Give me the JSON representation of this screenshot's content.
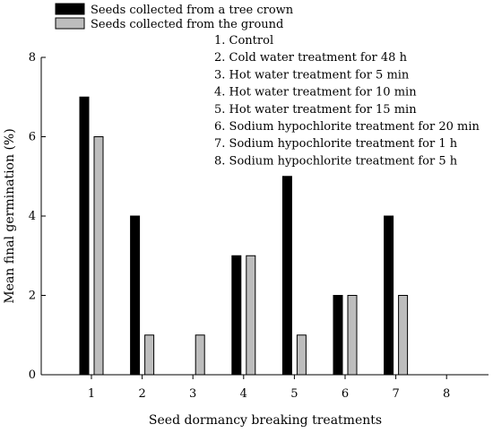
{
  "chart_data": {
    "type": "bar",
    "categories": [
      "1",
      "2",
      "3",
      "4",
      "5",
      "6",
      "7",
      "8"
    ],
    "series": [
      {
        "name": "Seeds collected from a tree crown",
        "values": [
          7,
          4,
          0,
          3,
          5,
          2,
          4,
          0
        ],
        "color": "#000000"
      },
      {
        "name": "Seeds collected from the ground",
        "values": [
          6,
          1,
          1,
          3,
          1,
          2,
          2,
          0
        ],
        "color": "#bdbdbd"
      }
    ],
    "title": "",
    "xlabel": "Seed dormancy breaking treatments",
    "ylabel": "Mean final germination (%)",
    "ylim": [
      0,
      8
    ],
    "yticks": [
      0,
      2,
      4,
      6,
      8
    ],
    "grid": false,
    "legend_position": "top-left",
    "treatment_notes": [
      "1. Control",
      "2. Cold water treatment for 48 h",
      "3. Hot water treatment for 5 min",
      "4. Hot water treatment for 10 min",
      "5. Hot water treatment for 15 min",
      "6. Sodium hypochlorite treatment for 20 min",
      "7. Sodium hypochlorite treatment for 1 h",
      "8. Sodium hypochlorite treatment for 5 h"
    ]
  }
}
